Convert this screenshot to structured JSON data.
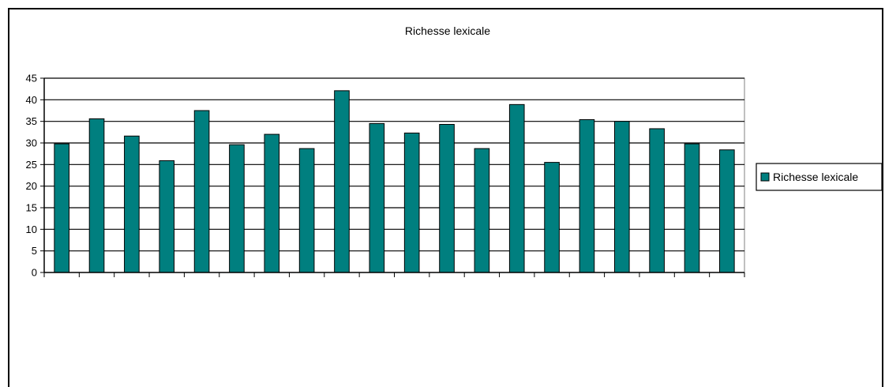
{
  "chart_data": {
    "type": "bar",
    "title": "Richesse lexicale",
    "xlabel": "",
    "ylabel": "",
    "ylim": [
      0,
      45
    ],
    "yticks": [
      0,
      5,
      10,
      15,
      20,
      25,
      30,
      35,
      40,
      45
    ],
    "grid": "horizontal",
    "legend_position": "right",
    "categories": [
      "",
      "",
      "",
      "",
      "",
      "",
      "",
      "",
      "",
      "",
      "",
      "",
      "",
      "",
      "",
      "",
      "",
      "",
      "",
      ""
    ],
    "series": [
      {
        "name": "Richesse lexicale",
        "color": "#007f7f",
        "values": [
          29.8,
          35.6,
          31.6,
          25.9,
          37.5,
          29.6,
          32.0,
          28.7,
          42.1,
          34.5,
          32.3,
          34.3,
          28.7,
          38.9,
          25.5,
          35.4,
          35.0,
          33.3,
          29.8,
          28.4
        ]
      }
    ]
  }
}
